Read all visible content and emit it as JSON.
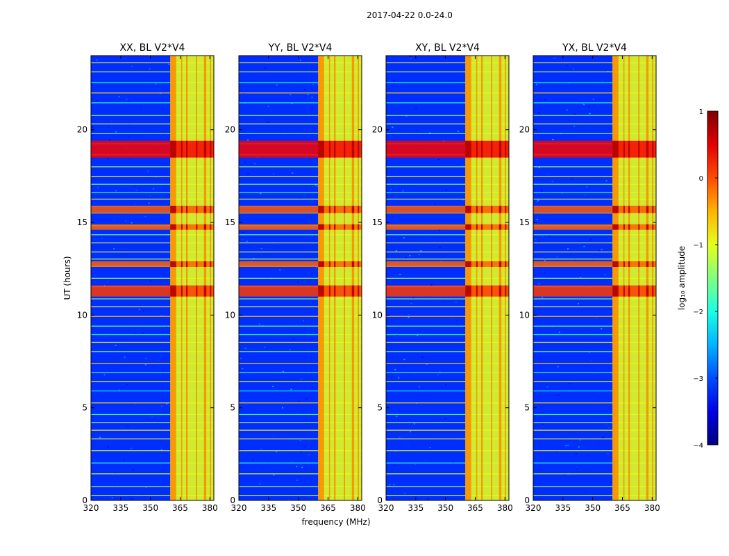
{
  "suptitle": "2017-04-22 0.0-24.0",
  "chart_data": {
    "type": "heatmap",
    "shared_xlabel": "frequency (MHz)",
    "shared_ylabel": "UT (hours)",
    "xlim": [
      320,
      382
    ],
    "ylim": [
      0,
      24
    ],
    "xticks": [
      320,
      335,
      350,
      365,
      380
    ],
    "yticks": [
      0,
      5,
      10,
      15,
      20
    ],
    "colormap": "jet",
    "panels": [
      {
        "title": "XX, BL V2*V4"
      },
      {
        "title": "YY, BL V2*V4"
      },
      {
        "title": "XY, BL V2*V4"
      },
      {
        "title": "YX, BL V2*V4"
      }
    ],
    "rfi_bands_mhz": [
      [
        360,
        363
      ],
      [
        365.5,
        366
      ],
      [
        368,
        368.8
      ],
      [
        373,
        373.6
      ],
      [
        377,
        378.2
      ],
      [
        380,
        380.6
      ]
    ],
    "strong_time_bands_hours": [
      {
        "start": 18.5,
        "end": 19.4,
        "level": 0.8
      },
      {
        "start": 15.5,
        "end": 15.9,
        "level": 0.35
      },
      {
        "start": 11.0,
        "end": 11.6,
        "level": 0.5
      },
      {
        "start": 12.6,
        "end": 12.9,
        "level": 0.3
      },
      {
        "start": 14.6,
        "end": 14.9,
        "level": 0.3
      }
    ],
    "colorbar": {
      "label": "log₁₀ amplitude",
      "min": -4,
      "max": 1,
      "ticks": [
        -4,
        -3,
        -2,
        -1,
        0,
        1
      ],
      "tick_labels": [
        "−4",
        "−3",
        "−2",
        "−1",
        "0",
        "1"
      ]
    }
  }
}
